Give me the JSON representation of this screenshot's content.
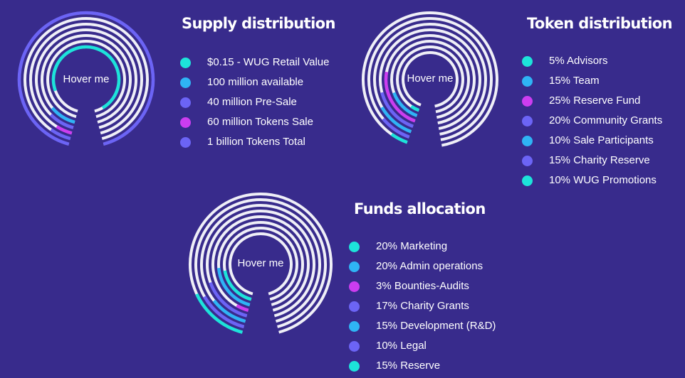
{
  "colors": {
    "background": "#382b8c",
    "ring": "#efeff7",
    "cyan": "#1de3da",
    "blue": "#2fb4f5",
    "purple": "#6c64f5",
    "magenta": "#cc3df0"
  },
  "sections": [
    {
      "id": "supply",
      "title": "Supply distribution",
      "hover": "Hover me",
      "items": [
        {
          "label": "$0.15 - WUG Retail Value",
          "color": "#1de3da"
        },
        {
          "label": "100 million available",
          "color": "#2fb4f5"
        },
        {
          "label": "40 million Pre-Sale",
          "color": "#6c64f5"
        },
        {
          "label": "60 million Tokens Sale",
          "color": "#cc3df0"
        },
        {
          "label": "1 billion Tokens Total",
          "color": "#6c64f5"
        }
      ]
    },
    {
      "id": "token",
      "title": "Token distribution",
      "hover": "Hover me",
      "items": [
        {
          "label": "5% Advisors",
          "color": "#1de3da"
        },
        {
          "label": "15% Team",
          "color": "#2fb4f5"
        },
        {
          "label": "25% Reserve Fund",
          "color": "#cc3df0"
        },
        {
          "label": "20% Community Grants",
          "color": "#6c64f5"
        },
        {
          "label": "10% Sale Participants",
          "color": "#2fb4f5"
        },
        {
          "label": "15% Charity Reserve",
          "color": "#6c64f5"
        },
        {
          "label": "10% WUG Promotions",
          "color": "#1de3da"
        }
      ]
    },
    {
      "id": "funds",
      "title": "Funds allocation",
      "hover": "Hover me",
      "items": [
        {
          "label": "20% Marketing",
          "color": "#1de3da"
        },
        {
          "label": "20% Admin operations",
          "color": "#2fb4f5"
        },
        {
          "label": "3% Bounties-Audits",
          "color": "#cc3df0"
        },
        {
          "label": "17% Charity Grants",
          "color": "#6c64f5"
        },
        {
          "label": "15% Development (R&D)",
          "color": "#2fb4f5"
        },
        {
          "label": "10% Legal",
          "color": "#6c64f5"
        },
        {
          "label": "15% Reserve",
          "color": "#1de3da"
        }
      ]
    }
  ]
}
